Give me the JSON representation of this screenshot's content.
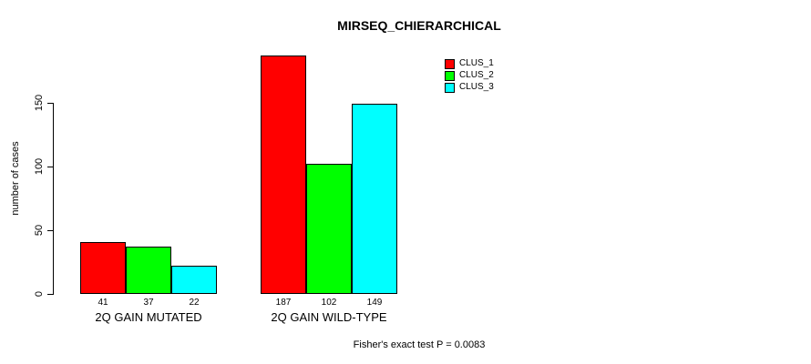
{
  "chart_data": {
    "type": "bar",
    "title": "MIRSEQ_CHIERARCHICAL",
    "ylabel": "number of cases",
    "xlabel": "",
    "categories": [
      "2Q GAIN MUTATED",
      "2Q GAIN WILD-TYPE"
    ],
    "series": [
      {
        "name": "CLUS_1",
        "color": "#ff0000",
        "values": [
          41,
          187
        ]
      },
      {
        "name": "CLUS_2",
        "color": "#00ff00",
        "values": [
          37,
          102
        ]
      },
      {
        "name": "CLUS_3",
        "color": "#00ffff",
        "values": [
          22,
          149
        ]
      }
    ],
    "y_ticks": [
      0,
      50,
      100,
      150
    ],
    "ylim": [
      0,
      150
    ],
    "grid": false,
    "bar_value_labels": true,
    "legend_position": "top-right",
    "annotation": "Fisher's exact test P = 0.0083"
  }
}
